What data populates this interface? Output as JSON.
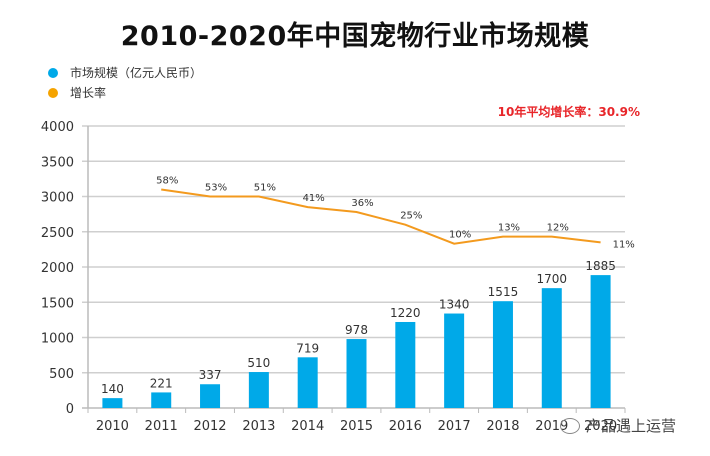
{
  "chart_data": {
    "type": "bar",
    "title": "2010-2020年中国宠物行业市场规模",
    "categories": [
      "2010",
      "2011",
      "2012",
      "2013",
      "2014",
      "2015",
      "2016",
      "2017",
      "2018",
      "2019",
      "2020"
    ],
    "series": [
      {
        "name": "市场规模（亿元人民币）",
        "type": "bar",
        "color": "#00a9e8",
        "values": [
          140,
          221,
          337,
          510,
          719,
          978,
          1220,
          1340,
          1515,
          1700,
          1885
        ],
        "labels": [
          "140",
          "221",
          "337",
          "510",
          "719",
          "978",
          "1220",
          "1340",
          "1515",
          "1700",
          "1885"
        ]
      },
      {
        "name": "增长率",
        "type": "line",
        "color": "#f39a1e",
        "categories": [
          "2011",
          "2012",
          "2013",
          "2014",
          "2015",
          "2016",
          "2017",
          "2018",
          "2019",
          "2020"
        ],
        "rates_percent": [
          58,
          53,
          51,
          41,
          36,
          25,
          10,
          13,
          12,
          11
        ],
        "plotted_axis_values": [
          3100,
          3000,
          3000,
          2850,
          2780,
          2600,
          2330,
          2430,
          2430,
          2350
        ],
        "labels": [
          "58%",
          "53%",
          "51%",
          "41%",
          "36%",
          "25%",
          "10%",
          "13%",
          "12%",
          "11%"
        ]
      }
    ],
    "yticks": [
      "0",
      "500",
      "1000",
      "1500",
      "2000",
      "2500",
      "3000",
      "3500",
      "4000"
    ],
    "ylim": [
      0,
      4000
    ],
    "xlabel": "",
    "ylabel": "",
    "grid": true,
    "legend": "top-left",
    "annotation": "10年平均增长率：30.9%"
  },
  "legend": {
    "items": [
      {
        "label": "市场规模（亿元人民币）",
        "color": "#00a9e8"
      },
      {
        "label": "增长率",
        "color": "#f5a300"
      }
    ]
  },
  "watermark": "产品遇上运营"
}
